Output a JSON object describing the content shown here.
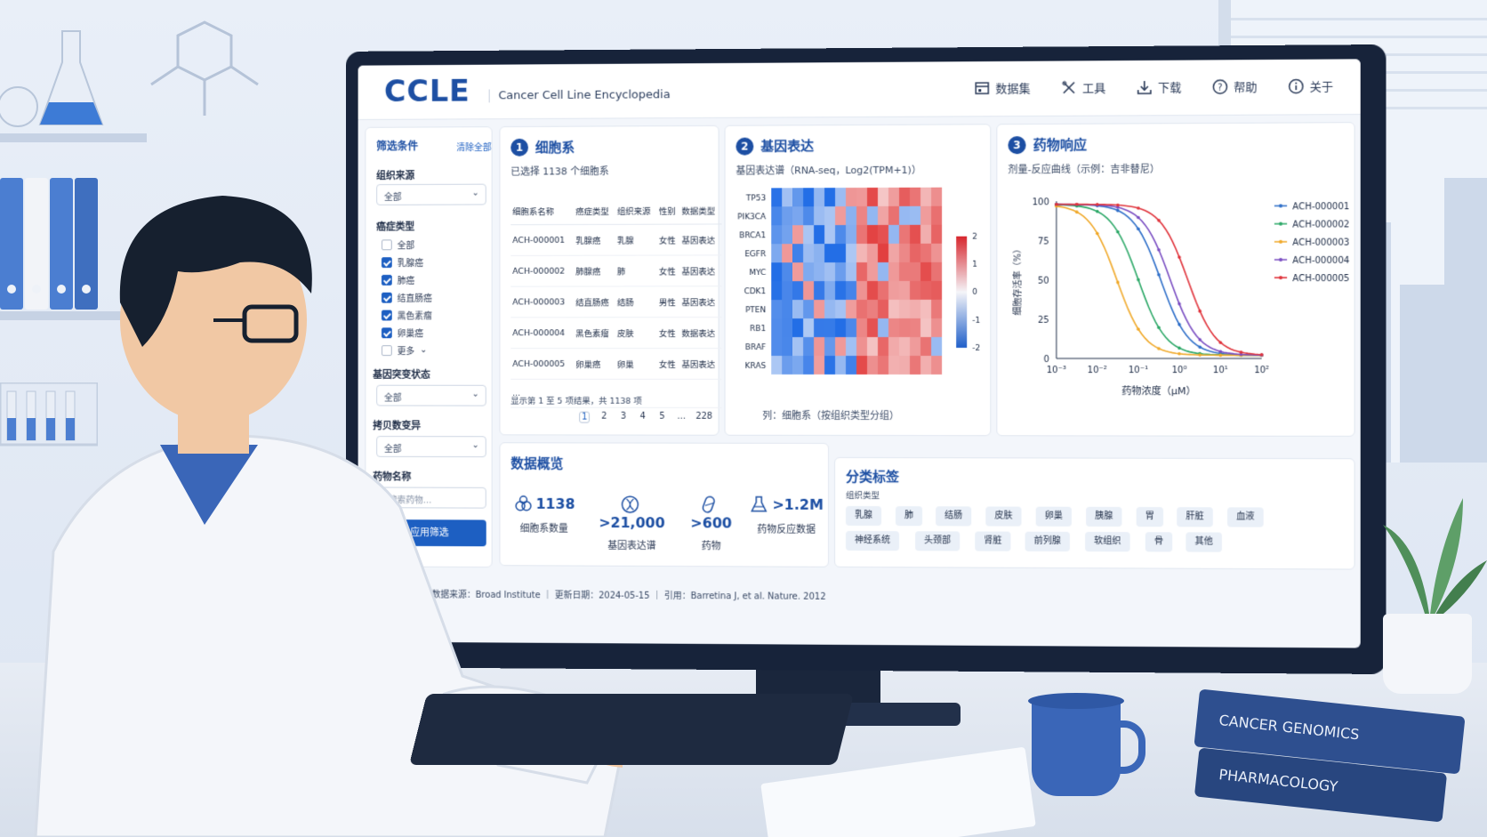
{
  "app": {
    "logo": "CCLE",
    "subtitle": "Cancer Cell Line Encyclopedia",
    "nav": [
      {
        "label": "数据集",
        "icon": "dataset-icon"
      },
      {
        "label": "工具",
        "icon": "tools-icon"
      },
      {
        "label": "下载",
        "icon": "download-icon"
      },
      {
        "label": "帮助",
        "icon": "help-icon"
      },
      {
        "label": "关于",
        "icon": "info-icon"
      }
    ]
  },
  "filters": {
    "title": "筛选条件",
    "clear_all": "清除全部",
    "tissue_label": "组织来源",
    "tissue_value": "全部",
    "cancer_label": "癌症类型",
    "cancer_options": [
      {
        "label": "全部",
        "checked": false
      },
      {
        "label": "乳腺癌",
        "checked": true
      },
      {
        "label": "肺癌",
        "checked": true
      },
      {
        "label": "结直肠癌",
        "checked": true
      },
      {
        "label": "黑色素瘤",
        "checked": true
      },
      {
        "label": "卵巢癌",
        "checked": true
      },
      {
        "label": "更多",
        "checked": false
      }
    ],
    "mutation_label": "基因突变状态",
    "mutation_value": "全部",
    "cnv_label": "拷贝数变异",
    "cnv_value": "全部",
    "drug_label": "药物名称",
    "drug_placeholder": "搜索药物...",
    "apply": "应用筛选"
  },
  "cell_lines": {
    "number": "1",
    "title": "细胞系",
    "subtitle": "已选择 1138 个细胞系",
    "columns": [
      "细胞系名称",
      "癌症类型",
      "组织来源",
      "性别",
      "数据类型"
    ],
    "rows": [
      [
        "ACH-000001",
        "乳腺癌",
        "乳腺",
        "女性",
        "基因表达"
      ],
      [
        "ACH-000002",
        "肺腺癌",
        "肺",
        "女性",
        "基因表达"
      ],
      [
        "ACH-000003",
        "结直肠癌",
        "结肠",
        "男性",
        "基因表达"
      ],
      [
        "ACH-000004",
        "黑色素瘤",
        "皮肤",
        "女性",
        "数据表达"
      ],
      [
        "ACH-000005",
        "卵巢癌",
        "卵巢",
        "女性",
        "基因表达"
      ]
    ],
    "ellipsis": "...",
    "summary": "显示第 1 至 5 项结果，共 1138 项",
    "pages": [
      "1",
      "2",
      "3",
      "4",
      "5",
      "...",
      "228",
      "›"
    ]
  },
  "expression": {
    "number": "2",
    "title": "基因表达",
    "subtitle": "基因表达谱（RNA-seq，Log2(TPM+1)）",
    "genes": [
      "TP53",
      "PIK3CA",
      "BRCA1",
      "EGFR",
      "MYC",
      "CDK1",
      "PTEN",
      "RB1",
      "BRAF",
      "KRAS"
    ],
    "scale_ticks": [
      "2",
      "1",
      "0",
      "-1",
      "-2"
    ],
    "caption": "列：细胞系（按组织类型分组）"
  },
  "drug_response": {
    "number": "3",
    "title": "药物响应",
    "subtitle": "剂量-反应曲线（示例：吉非替尼）"
  },
  "chart_data": {
    "type": "line",
    "xlabel": "药物浓度（μM）",
    "ylabel": "细胞存活率（%）",
    "x_scale": "log",
    "xlim": [
      0.001,
      100
    ],
    "ylim": [
      0,
      100
    ],
    "x_ticks": [
      "10⁻³",
      "10⁻²",
      "10⁻¹",
      "10⁰",
      "10¹",
      "10²"
    ],
    "y_ticks": [
      "0",
      "25",
      "50",
      "75",
      "100"
    ],
    "legend": "top-right",
    "series": [
      {
        "name": "ACH-000001",
        "color": "#2f6fc9",
        "ic50": 0.35
      },
      {
        "name": "ACH-000002",
        "color": "#2ca867",
        "ic50": 0.1
      },
      {
        "name": "ACH-000003",
        "color": "#f0a92a",
        "ic50": 0.03
      },
      {
        "name": "ACH-000004",
        "color": "#7a4ec2",
        "ic50": 0.6
      },
      {
        "name": "ACH-000005",
        "color": "#e0343c",
        "ic50": 1.6
      }
    ]
  },
  "overview": {
    "title": "数据概览",
    "stats": [
      {
        "value": "1138",
        "label": "细胞系数量"
      },
      {
        "value": ">21,000",
        "label": "基因表达谱"
      },
      {
        "value": ">600",
        "label": "药物"
      },
      {
        "value": ">1.2M",
        "label": "药物反应数据"
      }
    ]
  },
  "tags": {
    "title": "分类标签",
    "subtitle": "组织类型",
    "items": [
      "乳腺",
      "肺",
      "结肠",
      "皮肤",
      "卵巢",
      "胰腺",
      "胃",
      "肝脏",
      "血液",
      "神经系统",
      "头颈部",
      "肾脏",
      "前列腺",
      "软组织",
      "骨",
      "其他"
    ]
  },
  "footer": "CCLE v2024 ｜ 数据来源：Broad Institute ｜ 更新日期：2024-05-15 ｜ 引用：Barretina J, et al. Nature. 2012",
  "books": [
    "CANCER GENOMICS",
    "PHARMACOLOGY"
  ]
}
